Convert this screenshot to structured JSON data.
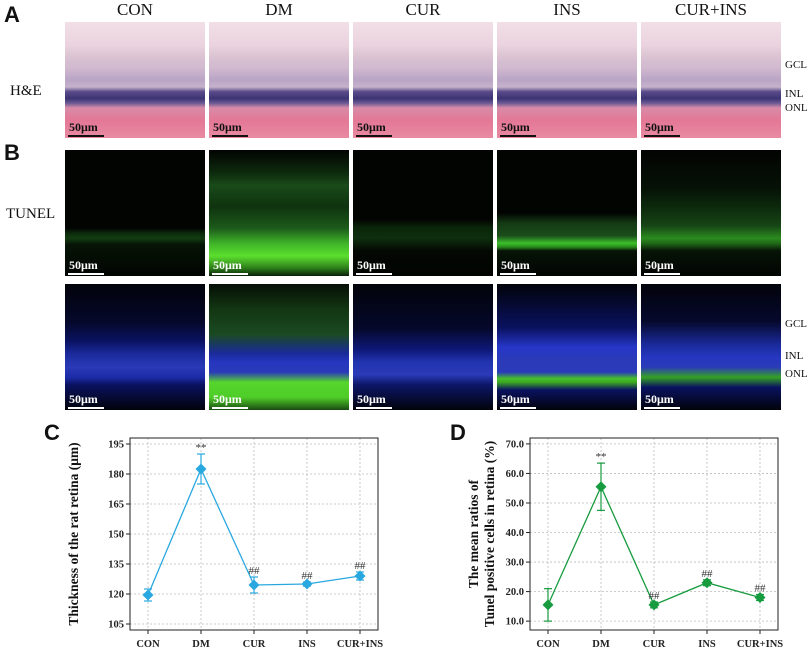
{
  "panels": {
    "A": "A",
    "B": "B",
    "C": "C",
    "D": "D"
  },
  "groups": [
    "CON",
    "DM",
    "CUR",
    "INS",
    "CUR+INS"
  ],
  "row_labels": {
    "he": "H&E",
    "tunel": "TUNEL"
  },
  "scale_label": "50μm",
  "layers": {
    "gcl": "GCL",
    "inl": "INL",
    "onl": "ONL"
  },
  "chart_data": [
    {
      "type": "line",
      "title": "",
      "xlabel": "",
      "ylabel": "Thickness of the rat retina (μm)",
      "categories": [
        "CON",
        "DM",
        "CUR",
        "INS",
        "CUR+INS"
      ],
      "values": [
        119.5,
        182.5,
        124.5,
        125,
        129
      ],
      "errors": [
        3,
        7.5,
        4,
        1,
        2
      ],
      "annotations": [
        "",
        "**",
        "##",
        "##",
        "##"
      ],
      "ylim": [
        102,
        198
      ],
      "yticks": [
        105,
        120,
        135,
        150,
        165,
        180,
        195
      ],
      "ytick_labels": [
        "105",
        "120",
        "135",
        "150",
        "165",
        "180",
        "195"
      ],
      "color": "#29a8e0",
      "marker": "diamond",
      "grid": true
    },
    {
      "type": "line",
      "title": "",
      "xlabel": "",
      "ylabel": "The mean ratios of Tunel positive cells in retina (%)",
      "ylabel_line1": "The mean ratios of",
      "ylabel_line2": "Tunel positive cells in retina (%)",
      "categories": [
        "CON",
        "DM",
        "CUR",
        "INS",
        "CUR+INS"
      ],
      "values": [
        15.5,
        55.5,
        15.5,
        23,
        18
      ],
      "errors": [
        5.5,
        8,
        1,
        1,
        1
      ],
      "annotations": [
        "",
        "**",
        "##",
        "##",
        "##"
      ],
      "ylim": [
        7,
        72
      ],
      "yticks": [
        10,
        20,
        30,
        40,
        50,
        60,
        70
      ],
      "ytick_labels": [
        "10.0",
        "20.0",
        "30.0",
        "40.0",
        "50.0",
        "60.0",
        "70.0"
      ],
      "color": "#179b3f",
      "marker": "diamond",
      "grid": true
    }
  ]
}
